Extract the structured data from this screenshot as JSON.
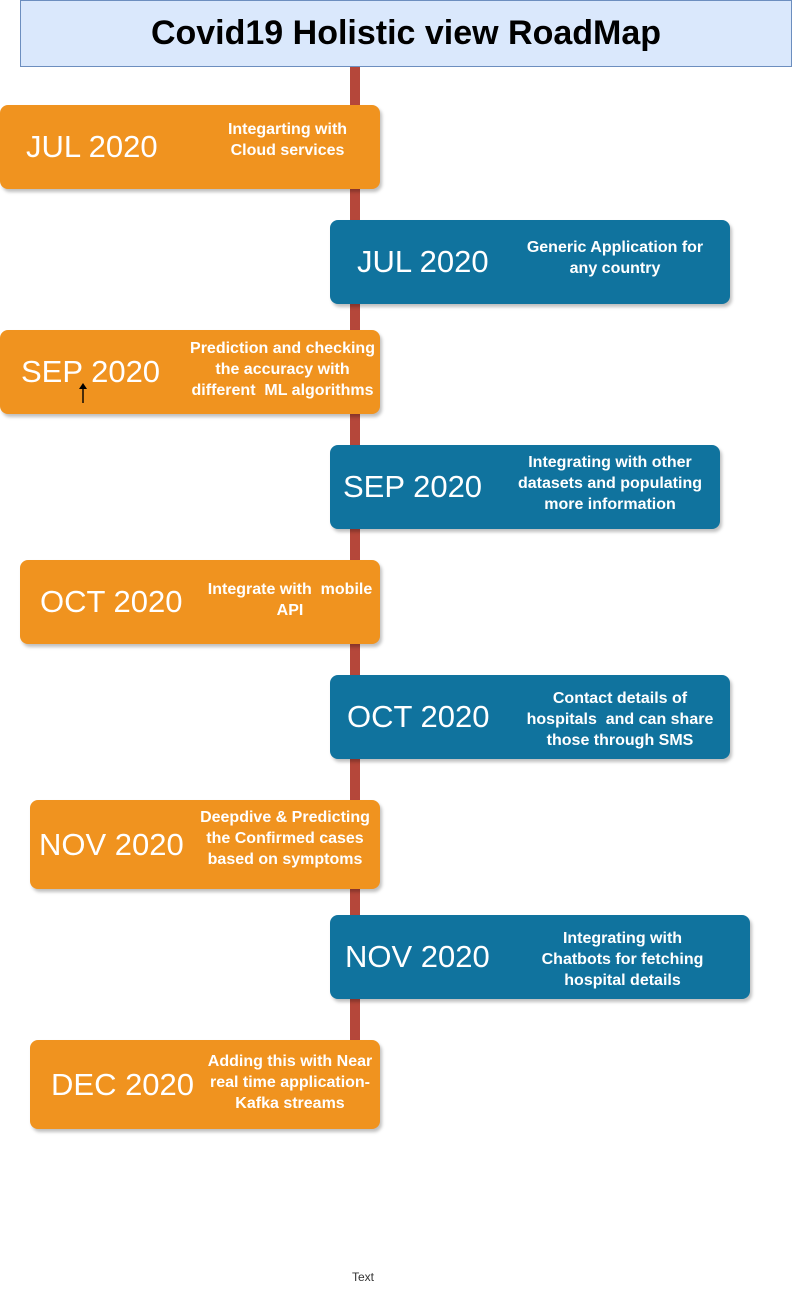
{
  "title": "Covid19 Holistic view RoadMap",
  "colors": {
    "title_fill": "#dae8fc",
    "timeline": "#b5473a",
    "orange": "#f0931f",
    "blue": "#10739e"
  },
  "milestones": [
    {
      "date": "JUL 2020",
      "description": "Integarting with\nCloud services",
      "color": "orange"
    },
    {
      "date": "JUL 2020",
      "description": "Generic Application for\nany country",
      "color": "blue"
    },
    {
      "date": "SEP 2020",
      "description": "Prediction and checking\nthe accuracy with\ndifferent  ML algorithms",
      "color": "orange"
    },
    {
      "date": "SEP 2020",
      "description": "Integrating with other\ndatasets and populating\nmore information",
      "color": "blue"
    },
    {
      "date": "OCT 2020",
      "description": "Integrate with  mobile\nAPI",
      "color": "orange"
    },
    {
      "date": "OCT 2020",
      "description": "Contact details of\nhospitals  and can share\nthose through SMS",
      "color": "blue"
    },
    {
      "date": "NOV 2020",
      "description": "Deepdive & Predicting\nthe Confirmed cases\nbased on symptoms",
      "color": "orange"
    },
    {
      "date": "NOV 2020",
      "description": "Integrating with\nChatbots for fetching\nhospital details",
      "color": "blue"
    },
    {
      "date": "DEC 2020",
      "description": "Adding this with Near\nreal time application-\nKafka streams",
      "color": "orange"
    }
  ],
  "footer": "Text"
}
